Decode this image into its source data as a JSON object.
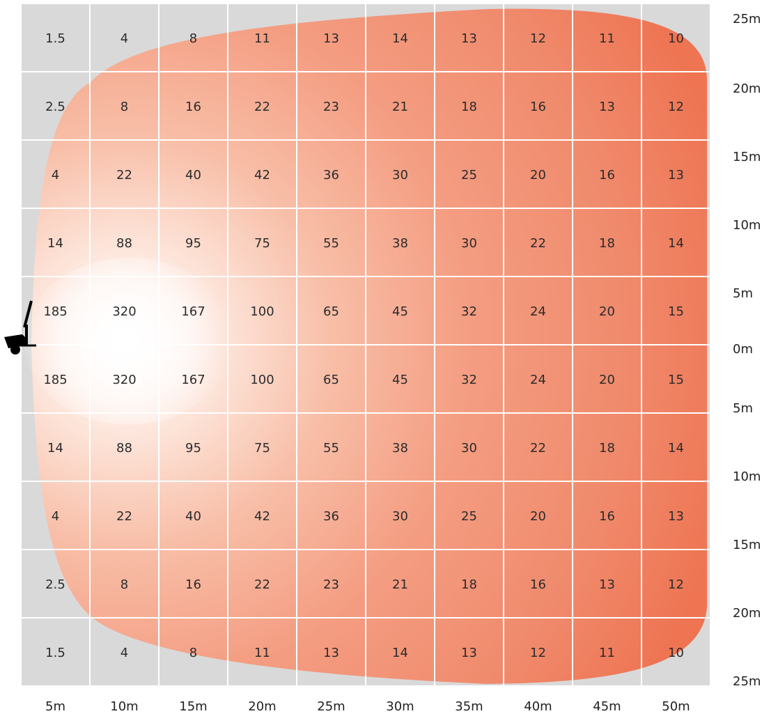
{
  "chart_data": {
    "type": "heatmap",
    "title": "",
    "xlabel": "",
    "ylabel": "",
    "x_tick_labels": [
      "5m",
      "10m",
      "15m",
      "20m",
      "25m",
      "30m",
      "35m",
      "40m",
      "45m",
      "50m"
    ],
    "y_tick_labels": [
      "25m",
      "20m",
      "15m",
      "10m",
      "5m",
      "0m",
      "5m",
      "10m",
      "15m",
      "20m",
      "25m"
    ],
    "rows": [
      [
        "1.5",
        "4",
        "8",
        "11",
        "13",
        "14",
        "13",
        "12",
        "11",
        "10"
      ],
      [
        "2.5",
        "8",
        "16",
        "22",
        "23",
        "21",
        "18",
        "16",
        "13",
        "12"
      ],
      [
        "4",
        "22",
        "40",
        "42",
        "36",
        "30",
        "25",
        "20",
        "16",
        "13"
      ],
      [
        "14",
        "88",
        "95",
        "75",
        "55",
        "38",
        "30",
        "22",
        "18",
        "14"
      ],
      [
        "185",
        "320",
        "167",
        "100",
        "65",
        "45",
        "32",
        "24",
        "20",
        "15"
      ],
      [
        "185",
        "320",
        "167",
        "100",
        "65",
        "45",
        "32",
        "24",
        "20",
        "15"
      ],
      [
        "14",
        "88",
        "95",
        "75",
        "55",
        "38",
        "30",
        "22",
        "18",
        "14"
      ],
      [
        "4",
        "22",
        "40",
        "42",
        "36",
        "30",
        "25",
        "20",
        "16",
        "13"
      ],
      [
        "2.5",
        "8",
        "16",
        "22",
        "23",
        "21",
        "18",
        "16",
        "13",
        "12"
      ],
      [
        "1.5",
        "4",
        "8",
        "11",
        "13",
        "14",
        "13",
        "12",
        "11",
        "10"
      ]
    ],
    "grid": true,
    "colors": {
      "background": "#d9d9d9",
      "beam_edge": "#ef6a45",
      "beam_mid": "#f4a386",
      "beam_core": "#ffffff",
      "grid_line": "#ffffff"
    }
  },
  "icons": {
    "light_source": "work-light-icon"
  }
}
